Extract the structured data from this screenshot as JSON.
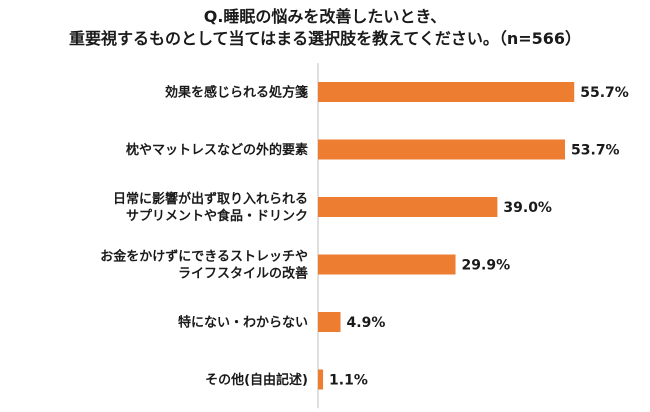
{
  "chart_data": {
    "type": "bar",
    "orientation": "horizontal",
    "title_lines": [
      "Q.睡眠の悩みを改善したいとき、",
      "重要視するものとして当てはまる選択肢を教えてください。（n=566）"
    ],
    "categories": [
      [
        "効果を感じられる処方箋"
      ],
      [
        "枕やマットレスなどの外的要素"
      ],
      [
        "日常に影響が出ず取り入れられる",
        "サプリメントや食品・ドリンク"
      ],
      [
        "お金をかけずにできるストレッチや",
        "ライフスタイルの改善"
      ],
      [
        "特にない・わからない"
      ],
      [
        "その他(自由記述)"
      ]
    ],
    "values": [
      55.7,
      53.7,
      39.0,
      29.9,
      4.9,
      1.1
    ],
    "value_labels": [
      "55.7%",
      "53.7%",
      "39.0%",
      "29.9%",
      "4.9%",
      "1.1%"
    ],
    "xlim": [
      0,
      100
    ],
    "bar_color": "#ED7D31",
    "axis_color": "#BFBFBF",
    "grid": false,
    "legend": "none"
  }
}
